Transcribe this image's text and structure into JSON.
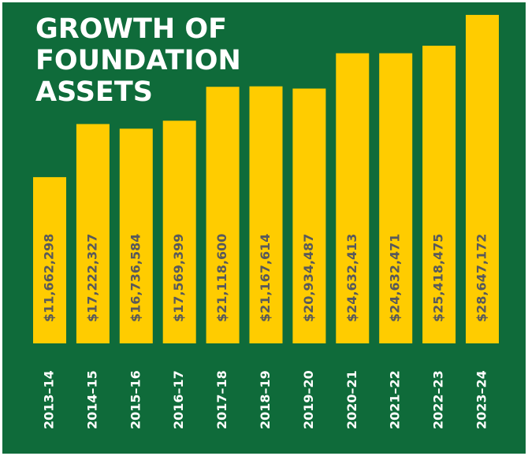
{
  "chart_data": {
    "type": "bar",
    "title": [
      "GROWTH OF",
      "FOUNDATION",
      "ASSETS"
    ],
    "categories": [
      "2013–14",
      "2014–15",
      "2015–16",
      "2016–17",
      "2017–18",
      "2018–19",
      "2019–20",
      "2020–21",
      "2021–22",
      "2022–23",
      "2023–24"
    ],
    "values": [
      11662298,
      17222327,
      16736584,
      17569399,
      21118600,
      21167614,
      20934487,
      24632413,
      24632471,
      25418475,
      28647172
    ],
    "value_labels": [
      "$11,662,298",
      "$17,222,327",
      "$16,736,584",
      "$17,569,399",
      "$21,118,600",
      "$21,167,614",
      "$20,934,487",
      "$24,632,413",
      "$24,632,471",
      "$25,418,475",
      "$28,647,172"
    ],
    "color": "#ffcc00",
    "background": "#0f6b3a"
  }
}
